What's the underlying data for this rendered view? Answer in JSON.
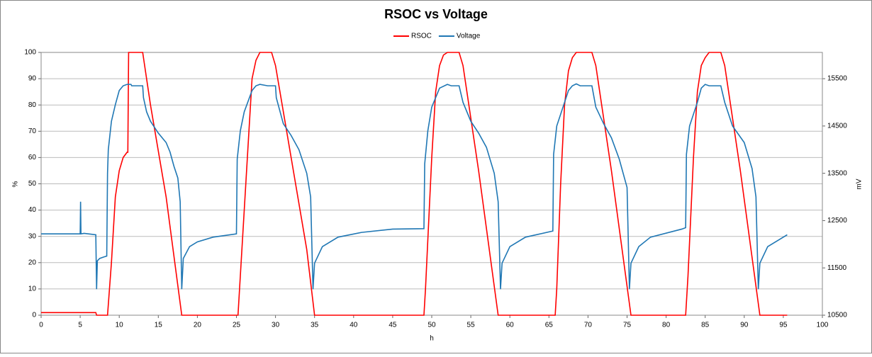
{
  "chart_data": {
    "type": "line",
    "title": "RSOC vs Voltage",
    "xlabel": "h",
    "ylabel": "%",
    "y2label": "mV",
    "xlim": [
      0,
      100
    ],
    "xticks": [
      0,
      5,
      10,
      15,
      20,
      25,
      30,
      35,
      40,
      45,
      50,
      55,
      60,
      65,
      70,
      75,
      80,
      85,
      90,
      95,
      100
    ],
    "ylim": [
      0,
      100
    ],
    "yticks": [
      0,
      10,
      20,
      30,
      40,
      50,
      60,
      70,
      80,
      90,
      100
    ],
    "y2lim": [
      10500,
      16055.6
    ],
    "y2ticks": [
      10500,
      11500,
      12500,
      13500,
      14500,
      15500
    ],
    "grid": true,
    "legend": "top",
    "series": [
      {
        "name": "RSOC",
        "color": "#ff0000",
        "x": [
          0,
          7,
          7.1,
          8.5,
          9,
          9.5,
          10,
          10.5,
          11,
          11.1,
          11.2,
          13,
          14,
          16,
          18,
          25.2,
          26,
          26.5,
          27,
          27.5,
          28,
          29.5,
          30,
          32,
          34,
          35,
          49,
          49.2,
          50,
          50.5,
          51,
          51.5,
          52,
          53.5,
          54,
          56,
          58.5,
          65.8,
          66,
          66.5,
          67,
          67.5,
          68,
          68.5,
          70.5,
          71,
          73,
          75.5,
          82.5,
          82.8,
          83.5,
          84,
          84.5,
          85,
          85.5,
          87,
          87.5,
          89.5,
          92,
          95.5
        ],
        "values": [
          1,
          1,
          0,
          0,
          20,
          45,
          55,
          60,
          62,
          62,
          100,
          100,
          80,
          45,
          0,
          0,
          40,
          65,
          90,
          97,
          100,
          100,
          95,
          60,
          25,
          0,
          0,
          10,
          60,
          85,
          95,
          99,
          100,
          100,
          95,
          55,
          0,
          0,
          10,
          50,
          80,
          93,
          98,
          100,
          100,
          95,
          55,
          0,
          0,
          15,
          60,
          85,
          95,
          98,
          100,
          100,
          95,
          55,
          0,
          0
        ]
      },
      {
        "name": "Voltage",
        "color": "#1f77b4",
        "axis": "y2",
        "x": [
          0,
          5,
          5.05,
          5.1,
          5.5,
          7,
          7.1,
          7.2,
          7.5,
          8,
          8.4,
          8.5,
          8.6,
          9,
          9.5,
          10,
          10.5,
          11,
          11.5,
          11.6,
          13,
          13.1,
          13.5,
          14,
          15,
          16,
          16.5,
          17,
          17.5,
          17.8,
          18,
          18.2,
          19,
          20,
          22,
          25,
          25.1,
          25.5,
          26,
          27,
          27.5,
          28,
          29,
          30,
          30.1,
          31,
          32,
          33,
          34,
          34.5,
          34.8,
          35,
          36,
          38,
          41,
          45,
          49,
          49.1,
          49.5,
          50,
          51,
          52,
          52.5,
          53.5,
          54,
          55,
          56,
          57,
          58,
          58.5,
          58.8,
          59,
          60,
          62,
          65.5,
          65.6,
          66,
          67,
          67.5,
          68,
          68.5,
          69,
          70.5,
          71,
          72,
          73,
          74,
          75,
          75.3,
          75.5,
          76.5,
          78,
          82,
          82.5,
          82.6,
          83,
          84,
          84.5,
          85,
          85.5,
          87,
          87.5,
          88.5,
          90,
          91,
          91.5,
          91.8,
          92,
          93,
          95.5
        ],
        "values": [
          12220,
          12220,
          12900,
          12220,
          12230,
          12200,
          11050,
          11650,
          11700,
          11730,
          11750,
          13500,
          14000,
          14600,
          14950,
          15250,
          15350,
          15380,
          15380,
          15350,
          15350,
          15100,
          14800,
          14600,
          14350,
          14150,
          13950,
          13650,
          13400,
          12900,
          11050,
          11700,
          11950,
          12050,
          12150,
          12220,
          13800,
          14400,
          14800,
          15250,
          15350,
          15380,
          15350,
          15350,
          15100,
          14550,
          14300,
          14000,
          13500,
          13000,
          11050,
          11600,
          11950,
          12150,
          12250,
          12320,
          12330,
          13700,
          14400,
          14900,
          15300,
          15380,
          15350,
          15350,
          15000,
          14600,
          14350,
          14050,
          13500,
          12900,
          11050,
          11600,
          11950,
          12150,
          12280,
          13900,
          14500,
          15000,
          15250,
          15350,
          15390,
          15350,
          15350,
          14900,
          14550,
          14250,
          13800,
          13200,
          11050,
          11600,
          11950,
          12150,
          12320,
          12350,
          13900,
          14500,
          15000,
          15300,
          15380,
          15350,
          15350,
          15000,
          14500,
          14150,
          13600,
          13000,
          11050,
          11600,
          11950,
          12200
        ]
      }
    ]
  }
}
